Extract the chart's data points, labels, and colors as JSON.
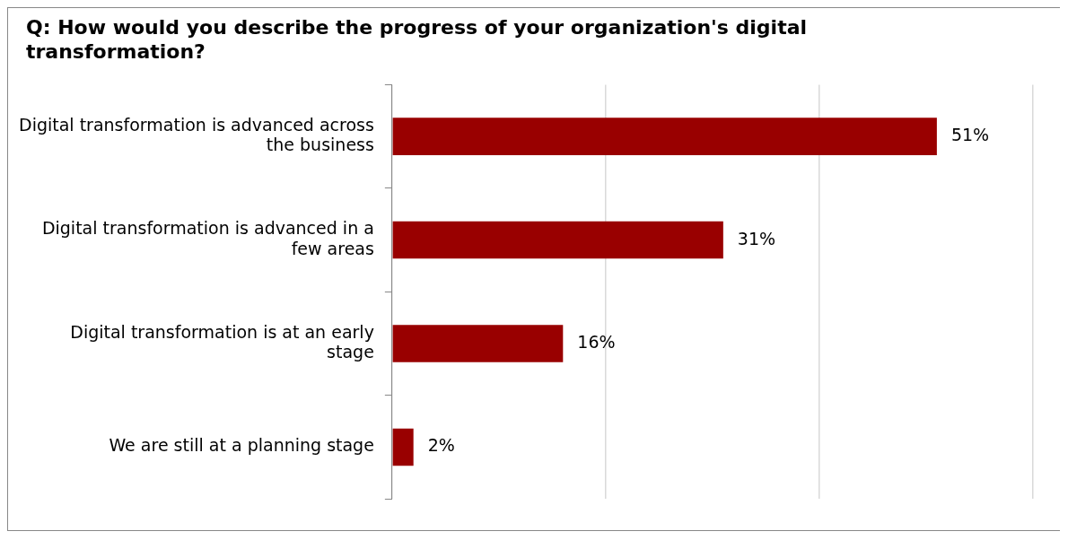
{
  "chart_data": {
    "type": "bar",
    "orientation": "horizontal",
    "title": "Q: How would you describe the progress of your organization's digital transformation?",
    "categories": [
      "Digital transformation is advanced across the business",
      "Digital transformation is advanced in a few areas",
      "Digital transformation is at an early stage",
      "We are still at a planning stage"
    ],
    "values": [
      51,
      31,
      16,
      2
    ],
    "value_labels": [
      "51%",
      "31%",
      "16%",
      "2%"
    ],
    "color": "#990000",
    "xlim": [
      0,
      60
    ],
    "xticks": [
      {
        "value": 0,
        "label": null
      },
      {
        "value": 20,
        "label": null
      },
      {
        "value": 40,
        "label": null
      },
      {
        "value": 60,
        "label": null
      }
    ],
    "grid": "x",
    "tick_labels": "y",
    "legend": false
  }
}
